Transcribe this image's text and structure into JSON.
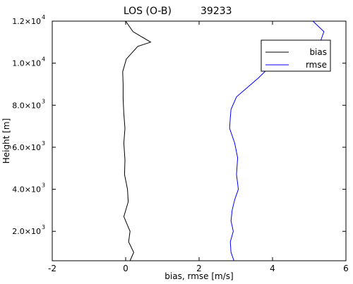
{
  "chart_data": {
    "type": "line",
    "title": "LOS (O-B)",
    "count": "39233",
    "xlabel": "bias, rmse [m/s]",
    "ylabel": "Height [m]",
    "xlim": [
      -2,
      6
    ],
    "ylim": [
      600,
      12000
    ],
    "grid": false,
    "legend_position": "top-right",
    "x_ticks": [
      {
        "value": -2,
        "label": "-2"
      },
      {
        "value": 0,
        "label": "0"
      },
      {
        "value": 2,
        "label": "2"
      },
      {
        "value": 4,
        "label": "4"
      },
      {
        "value": 6,
        "label": "6"
      }
    ],
    "y_ticks": [
      {
        "value": 2000,
        "mant": "2.0×10",
        "exp": "3"
      },
      {
        "value": 4000,
        "mant": "4.0×10",
        "exp": "3"
      },
      {
        "value": 6000,
        "mant": "6.0×10",
        "exp": "3"
      },
      {
        "value": 8000,
        "mant": "8.0×10",
        "exp": "3"
      },
      {
        "value": 10000,
        "mant": "1.0×10",
        "exp": "4"
      },
      {
        "value": 12000,
        "mant": "1.2×10",
        "exp": "4"
      }
    ],
    "series": [
      {
        "name": "bias",
        "color": "#000000",
        "points": [
          [
            0.12,
            600
          ],
          [
            0.22,
            1000
          ],
          [
            0.08,
            1500
          ],
          [
            0.12,
            2000
          ],
          [
            -0.05,
            2700
          ],
          [
            0.07,
            3400
          ],
          [
            0.05,
            4000
          ],
          [
            -0.03,
            4700
          ],
          [
            -0.02,
            5400
          ],
          [
            -0.05,
            6200
          ],
          [
            -0.02,
            6900
          ],
          [
            -0.05,
            7600
          ],
          [
            -0.07,
            8300
          ],
          [
            -0.07,
            9000
          ],
          [
            -0.08,
            9600
          ],
          [
            0.02,
            10200
          ],
          [
            0.33,
            10800
          ],
          [
            0.68,
            11000
          ],
          [
            0.2,
            11500
          ],
          [
            0.0,
            12000
          ]
        ]
      },
      {
        "name": "rmse",
        "color": "#0000ff",
        "points": [
          [
            2.95,
            600
          ],
          [
            2.87,
            1000
          ],
          [
            2.85,
            1500
          ],
          [
            2.93,
            2000
          ],
          [
            2.87,
            2500
          ],
          [
            2.9,
            3000
          ],
          [
            2.97,
            3500
          ],
          [
            3.07,
            4000
          ],
          [
            3.02,
            4700
          ],
          [
            3.05,
            5500
          ],
          [
            2.97,
            6200
          ],
          [
            2.83,
            6900
          ],
          [
            2.85,
            7400
          ],
          [
            2.87,
            7800
          ],
          [
            3.02,
            8400
          ],
          [
            3.62,
            9300
          ],
          [
            3.85,
            9700
          ],
          [
            4.15,
            10100
          ],
          [
            4.75,
            10600
          ],
          [
            5.3,
            11000
          ],
          [
            5.4,
            11500
          ],
          [
            5.1,
            12000
          ]
        ]
      }
    ]
  }
}
